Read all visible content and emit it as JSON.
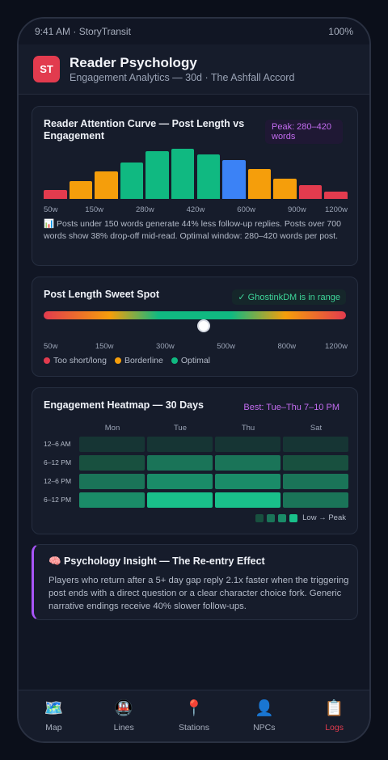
{
  "status": {
    "left": "9:41 AM · StoryTransit",
    "right": "100%"
  },
  "header": {
    "logo": "ST",
    "title": "Reader Psychology",
    "subtitle": "Engagement Analytics — 30d · The Ashfall Accord"
  },
  "attention": {
    "title": "Reader Attention Curve — Post Length vs Engagement",
    "badge": "Peak: 280–420 words",
    "note": "📊 Posts under 150 words generate 44% less follow-up replies. Posts over 700 words show 38% drop-off mid-read. Optimal window: 280–420 words per post."
  },
  "chart_data": {
    "type": "bar",
    "title": "Reader Attention Curve — Post Length vs Engagement",
    "tick_labels": [
      "50w",
      "150w",
      "280w",
      "420w",
      "600w",
      "900w",
      "1200w"
    ],
    "values": [
      18,
      35,
      55,
      73,
      95,
      100,
      89,
      77,
      60,
      41,
      28,
      14
    ],
    "colors": [
      "#e23b4e",
      "#f59e0b",
      "#f59e0b",
      "#10b981",
      "#10b981",
      "#10b981",
      "#10b981",
      "#3b82f6",
      "#f59e0b",
      "#f59e0b",
      "#e23b4e",
      "#e23b4e"
    ],
    "ylim": [
      0,
      100
    ]
  },
  "sweet": {
    "title": "Post Length Sweet Spot",
    "badge": "✓ GhostinkDM is in range",
    "position": 0.53,
    "ticks": [
      "50w",
      "150w",
      "300w",
      "500w",
      "800w",
      "1200w"
    ],
    "legend": [
      {
        "label": "Too short/long",
        "color": "#e23b4e"
      },
      {
        "label": "Borderline",
        "color": "#f59e0b"
      },
      {
        "label": "Optimal",
        "color": "#10b981"
      }
    ]
  },
  "heatmap": {
    "title": "Engagement Heatmap — 30 Days",
    "badge": "Best: Tue–Thu 7–10 PM",
    "columns": [
      "Mon",
      "Tue",
      "Thu",
      "Sat"
    ],
    "rows": [
      "12–6 AM",
      "6–12 PM",
      "12–6 PM",
      "6–12 PM"
    ],
    "levels": [
      [
        0,
        0,
        0,
        0
      ],
      [
        1,
        2,
        2,
        1
      ],
      [
        2,
        3,
        3,
        2
      ],
      [
        3,
        4,
        4,
        2
      ]
    ],
    "palette": [
      "#163534",
      "#18503f",
      "#1a7458",
      "#1a8c68",
      "#19c08a"
    ],
    "legend_label": "Low → Peak"
  },
  "insight": {
    "title": "🧠 Psychology Insight — The Re-entry Effect",
    "text": "Players who return after a 5+ day gap reply 2.1x faster when the triggering post ends with a direct question or a clear character choice fork. Generic narrative endings receive 40% slower follow-ups."
  },
  "nav": [
    {
      "icon": "🗺️",
      "label": "Map",
      "name": "map"
    },
    {
      "icon": "🚇",
      "label": "Lines",
      "name": "lines"
    },
    {
      "icon": "📍",
      "label": "Stations",
      "name": "stations"
    },
    {
      "icon": "👤",
      "label": "NPCs",
      "name": "npcs"
    },
    {
      "icon": "📋",
      "label": "Logs",
      "name": "logs",
      "active": true
    }
  ]
}
